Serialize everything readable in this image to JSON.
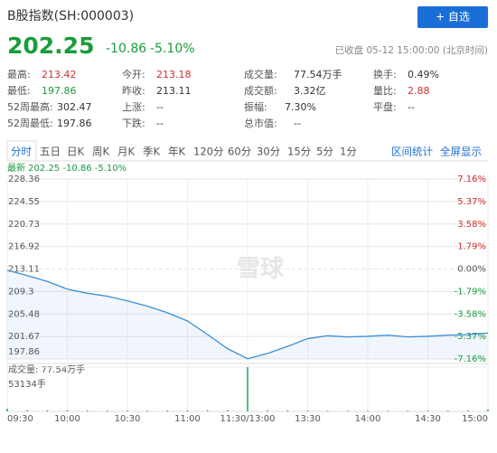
{
  "header": {
    "title": "B股指数(SH:000003)",
    "button": "+ 自选",
    "price": "202.25",
    "change": "-10.86",
    "change_pct": "-5.10%",
    "status": "已收盘 05-12 15:00:00 (北京时间)"
  },
  "stats": [
    {
      "label": "最高:",
      "value": "213.42",
      "color": "#d0312d"
    },
    {
      "label": "今开:",
      "value": "213.18",
      "color": "#d0312d"
    },
    {
      "label": "成交量:",
      "value": "77.54万手",
      "color": "#333333"
    },
    {
      "label": "换手:",
      "value": "0.49%",
      "color": "#333333"
    },
    {
      "label": "最低:",
      "value": "197.86",
      "color": "#1a9c3d"
    },
    {
      "label": "昨收:",
      "value": "213.11",
      "color": "#333333"
    },
    {
      "label": "成交额:",
      "value": "3.32亿",
      "color": "#333333"
    },
    {
      "label": "量比:",
      "value": "2.88",
      "color": "#d0312d"
    },
    {
      "label": "52周最高:",
      "value": "302.47",
      "color": "#333333"
    },
    {
      "label": "上涨:",
      "value": "--",
      "color": "#333333"
    },
    {
      "label": "振幅:",
      "value": "7.30%",
      "color": "#333333"
    },
    {
      "label": "平盘:",
      "value": "--",
      "color": "#333333"
    },
    {
      "label": "52周最低:",
      "value": "197.86",
      "color": "#333333"
    },
    {
      "label": "下跌:",
      "value": "--",
      "color": "#333333"
    },
    {
      "label": "总市值:",
      "value": "--",
      "color": "#333333"
    }
  ],
  "tabs": [
    "分时",
    "五日",
    "日K",
    "周K",
    "月K",
    "季K",
    "年K",
    "120分",
    "60分",
    "30分",
    "15分",
    "5分",
    "1分"
  ],
  "tab_links": [
    "区间统计",
    "全屏显示"
  ],
  "watermark": "雪球",
  "chart_data": {
    "type": "line",
    "legend_text": "最新 202.25 -10.86 -5.10%",
    "x": [
      0,
      10,
      20,
      30,
      40,
      50,
      60,
      70,
      80,
      90,
      100,
      110,
      120,
      130,
      140,
      150,
      160,
      170,
      180,
      190,
      200,
      210,
      220,
      230,
      240
    ],
    "series": [
      {
        "name": "B股指数",
        "color": "#3a8fd6",
        "values": [
          212.9,
          212.0,
          211.0,
          209.7,
          209.0,
          208.5,
          207.7,
          206.8,
          205.7,
          204.3,
          202.0,
          199.6,
          197.9,
          198.8,
          200.0,
          201.3,
          201.8,
          201.6,
          201.7,
          201.9,
          201.6,
          201.7,
          201.9,
          202.0,
          202.25
        ]
      }
    ],
    "xlim": [
      0,
      240
    ],
    "xticks": [
      {
        "value": 0,
        "label": "09:30"
      },
      {
        "value": 30,
        "label": "10:00"
      },
      {
        "value": 60,
        "label": "10:30"
      },
      {
        "value": 90,
        "label": "11:00"
      },
      {
        "value": 120,
        "label": "11:30/13:00"
      },
      {
        "value": 150,
        "label": "13:30"
      },
      {
        "value": 180,
        "label": "14:00"
      },
      {
        "value": 210,
        "label": "14:30"
      },
      {
        "value": 240,
        "label": "15:00"
      }
    ],
    "ylim": [
      197.86,
      228.36
    ],
    "yticks": [
      228.36,
      224.55,
      220.73,
      216.92,
      213.11,
      209.3,
      205.48,
      201.67,
      197.86
    ],
    "y2lim": [
      -7.16,
      7.16
    ],
    "y2ticks": [
      {
        "value": 7.16,
        "label": "7.16%"
      },
      {
        "value": 5.37,
        "label": "5.37%"
      },
      {
        "value": 3.58,
        "label": "3.58%"
      },
      {
        "value": 1.79,
        "label": "1.79%"
      },
      {
        "value": 0,
        "label": "0.00%"
      },
      {
        "value": -1.79,
        "label": "-1.79%"
      },
      {
        "value": -3.58,
        "label": "-3.58%"
      },
      {
        "value": -5.37,
        "label": "-5.37%"
      },
      {
        "value": -7.16,
        "label": "-7.16%"
      }
    ],
    "grid": true,
    "volume": {
      "type": "bar",
      "title": "成交量: 77.54万手",
      "color": "#2e9e5a",
      "x": [
        0,
        10,
        20,
        30,
        40,
        50,
        60,
        70,
        80,
        90,
        100,
        110,
        120,
        130,
        140,
        150,
        160,
        170,
        180,
        190,
        200,
        210,
        220,
        230,
        240
      ],
      "values": [
        3200,
        1500,
        1300,
        1200,
        1100,
        1100,
        1000,
        1100,
        1200,
        1300,
        1500,
        1600,
        53134,
        1400,
        1200,
        1000,
        900,
        900,
        800,
        800,
        900,
        900,
        1000,
        1200,
        2500
      ],
      "ylim": [
        0,
        53134
      ],
      "yticks": [
        {
          "value": 53134,
          "label": "53134手"
        }
      ]
    }
  }
}
